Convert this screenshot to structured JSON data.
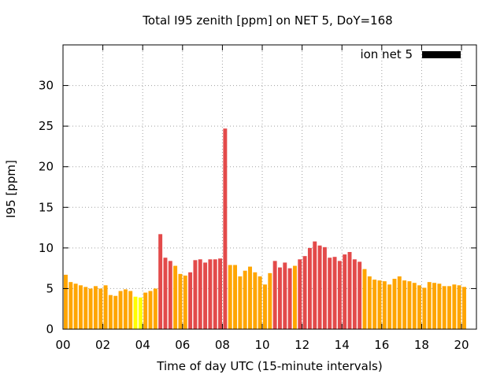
{
  "colors": {
    "yellow": "#ffff00",
    "orange": "#ffa500",
    "red": "#e34a4a",
    "legend": "#000000",
    "grid": "#a0a0a0"
  },
  "chart_data": {
    "type": "bar",
    "title": "Total I95 zenith [ppm] on NET 5, DoY=168",
    "xlabel": "Time of day UTC (15-minute intervals)",
    "ylabel": "I95 [ppm]",
    "xlim": [
      0,
      20.75
    ],
    "ylim": [
      0,
      35
    ],
    "xticks": [
      "00",
      "02",
      "04",
      "06",
      "08",
      "10",
      "12",
      "14",
      "16",
      "18",
      "20"
    ],
    "yticks": [
      "0",
      "5",
      "10",
      "15",
      "20",
      "25",
      "30"
    ],
    "grid": true,
    "legend_position": "top-right",
    "series": [
      {
        "name": "ion net 5",
        "interval_hours": 0.25,
        "values": [
          6.7,
          5.8,
          5.6,
          5.4,
          5.2,
          5.0,
          5.3,
          5.0,
          5.4,
          4.2,
          4.1,
          4.7,
          4.9,
          4.7,
          4.0,
          3.9,
          4.5,
          4.7,
          5.0,
          11.7,
          8.8,
          8.4,
          7.8,
          6.8,
          6.6,
          7.0,
          8.5,
          8.6,
          8.2,
          8.6,
          8.6,
          8.7,
          24.7,
          7.9,
          7.9,
          6.5,
          7.2,
          7.7,
          7.0,
          6.5,
          5.5,
          6.9,
          8.4,
          7.6,
          8.2,
          7.5,
          7.8,
          8.6,
          9.0,
          10.0,
          10.8,
          10.3,
          10.1,
          8.8,
          8.9,
          8.4,
          9.2,
          9.5,
          8.6,
          8.3,
          7.4,
          6.5,
          6.1,
          6.0,
          5.9,
          5.5,
          6.2,
          6.5,
          6.0,
          5.9,
          5.7,
          5.4,
          5.1,
          5.8,
          5.7,
          5.6,
          5.3,
          5.3,
          5.5,
          5.4,
          5.2
        ],
        "colors": [
          "orange",
          "orange",
          "orange",
          "orange",
          "orange",
          "orange",
          "orange",
          "orange",
          "orange",
          "orange",
          "orange",
          "orange",
          "orange",
          "orange",
          "yellow",
          "yellow",
          "orange",
          "orange",
          "orange",
          "red",
          "red",
          "red",
          "orange",
          "orange",
          "orange",
          "red",
          "red",
          "red",
          "red",
          "red",
          "red",
          "red",
          "red",
          "orange",
          "orange",
          "orange",
          "orange",
          "orange",
          "orange",
          "orange",
          "orange",
          "orange",
          "red",
          "red",
          "red",
          "red",
          "orange",
          "red",
          "red",
          "red",
          "red",
          "red",
          "red",
          "red",
          "red",
          "red",
          "red",
          "red",
          "red",
          "red",
          "orange",
          "orange",
          "orange",
          "orange",
          "orange",
          "orange",
          "orange",
          "orange",
          "orange",
          "orange",
          "orange",
          "orange",
          "orange",
          "orange",
          "orange",
          "orange",
          "orange",
          "orange",
          "orange",
          "orange",
          "orange"
        ]
      }
    ]
  }
}
